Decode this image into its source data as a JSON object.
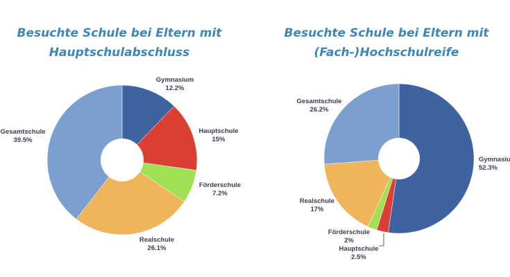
{
  "chart_data": [
    {
      "type": "pie",
      "title_lines": [
        "Besuchte Schule bei Eltern mit",
        "Hauptschulabschluss"
      ],
      "slices": [
        {
          "label": "Gymnasium",
          "value": 12.2,
          "value_text": "12.2%",
          "color": "#3e63a0"
        },
        {
          "label": "Hauptschule",
          "value": 15,
          "value_text": "15%",
          "color": "#db4034"
        },
        {
          "label": "Förderschule",
          "value": 7.2,
          "value_text": "7.2%",
          "color": "#9fe055"
        },
        {
          "label": "Realschule",
          "value": 26.1,
          "value_text": "26.1%",
          "color": "#f0b55a"
        },
        {
          "label": "Gesamtschule",
          "value": 39.5,
          "value_text": "39.5%",
          "color": "#7b9fcf"
        }
      ]
    },
    {
      "type": "pie",
      "title_lines": [
        "Besuchte Schule bei Eltern mit",
        "(Fach-)Hochschulreife"
      ],
      "slices": [
        {
          "label": "Gymnasium",
          "value": 52.3,
          "value_text": "52.3%",
          "color": "#3e63a0"
        },
        {
          "label": "Hauptschule",
          "value": 2.5,
          "value_text": "2.5%",
          "color": "#db4034"
        },
        {
          "label": "Förderschule",
          "value": 2,
          "value_text": "2%",
          "color": "#9fe055"
        },
        {
          "label": "Realschule",
          "value": 17,
          "value_text": "17%",
          "color": "#f0b55a"
        },
        {
          "label": "Gesamtschule",
          "value": 26.2,
          "value_text": "26.2%",
          "color": "#7b9fcf"
        }
      ]
    }
  ]
}
